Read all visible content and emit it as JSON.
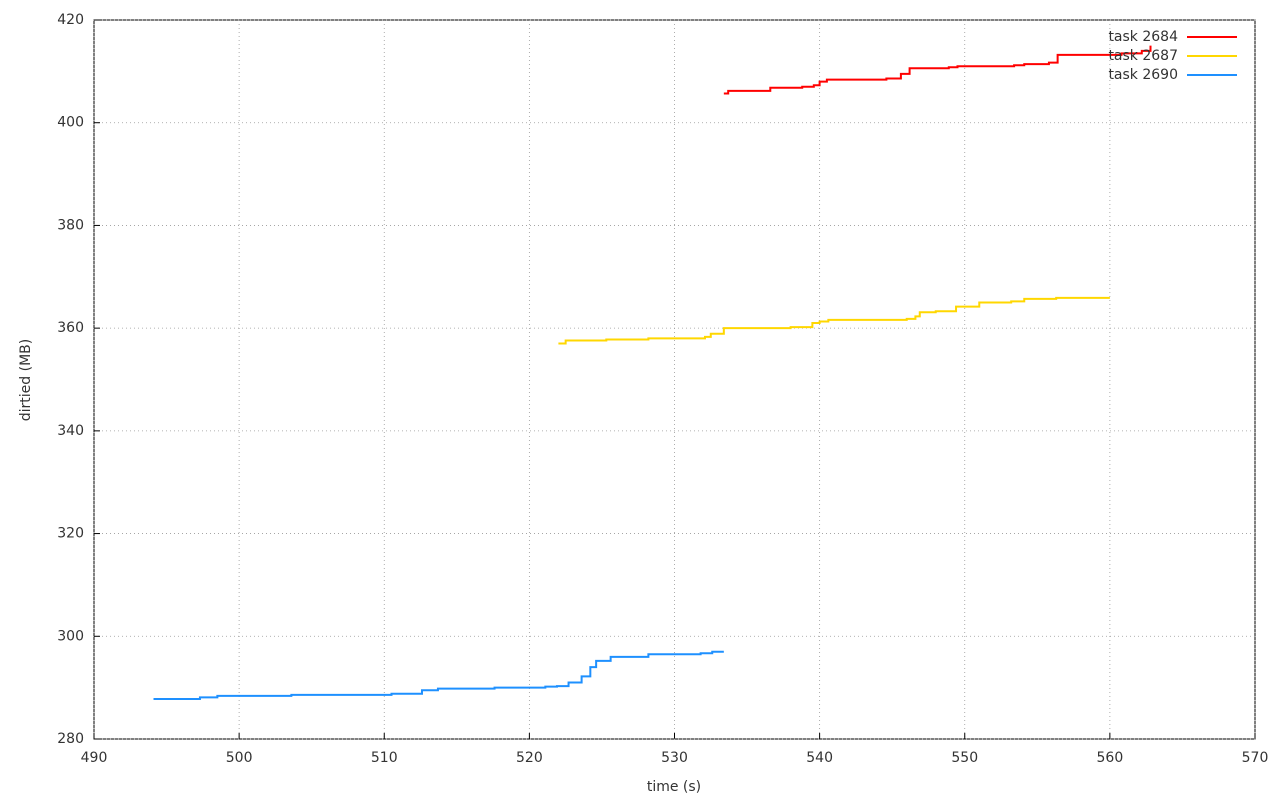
{
  "chart_data": {
    "type": "line",
    "steps": true,
    "grid": true,
    "legend": "top-right",
    "xlabel": "time (s)",
    "ylabel": "dirtied (MB)",
    "xlim": [
      490,
      570
    ],
    "xticks": [
      490,
      500,
      510,
      520,
      530,
      540,
      550,
      560,
      570
    ],
    "ylim": [
      280,
      420
    ],
    "yticks": [
      280,
      300,
      320,
      340,
      360,
      380,
      400,
      420
    ],
    "series": [
      {
        "name": "task 2684",
        "color": "#ff0000",
        "x": [
          533.4,
          533.7,
          536.6,
          538.8,
          539.6,
          540.0,
          540.5,
          544.6,
          545.6,
          546.2,
          548.9,
          549.5,
          553.4,
          554.1,
          555.8,
          556.4,
          560.8,
          562.2,
          562.8
        ],
        "values": [
          405.7,
          406.2,
          406.8,
          407.0,
          407.3,
          408.0,
          408.4,
          408.6,
          409.5,
          410.6,
          410.8,
          411.0,
          411.2,
          411.4,
          411.7,
          413.2,
          413.5,
          414.0,
          415.0
        ]
      },
      {
        "name": "task 2687",
        "color": "#ffd700",
        "x": [
          522.0,
          522.5,
          525.3,
          528.2,
          532.1,
          532.5,
          533.4,
          538.0,
          539.5,
          540.0,
          540.6,
          546.0,
          546.6,
          546.9,
          548.0,
          549.4,
          551.0,
          553.2,
          554.1,
          556.3,
          560.0
        ],
        "values": [
          357.0,
          357.6,
          357.8,
          358.0,
          358.3,
          358.9,
          360.0,
          360.2,
          361.0,
          361.3,
          361.6,
          361.8,
          362.3,
          363.1,
          363.3,
          364.2,
          365.0,
          365.2,
          365.7,
          365.9,
          365.9
        ]
      },
      {
        "name": "task 2690",
        "color": "#1e90ff",
        "x": [
          494.1,
          497.3,
          498.5,
          503.6,
          510.5,
          512.6,
          513.7,
          517.6,
          521.1,
          521.9,
          522.7,
          523.6,
          524.2,
          524.6,
          525.6,
          528.2,
          531.8,
          532.6,
          533.4
        ],
        "values": [
          287.8,
          288.1,
          288.4,
          288.6,
          288.8,
          289.5,
          289.8,
          290.0,
          290.2,
          290.3,
          291.0,
          292.2,
          294.0,
          295.2,
          296.0,
          296.5,
          296.7,
          297.0,
          297.0
        ]
      }
    ]
  }
}
